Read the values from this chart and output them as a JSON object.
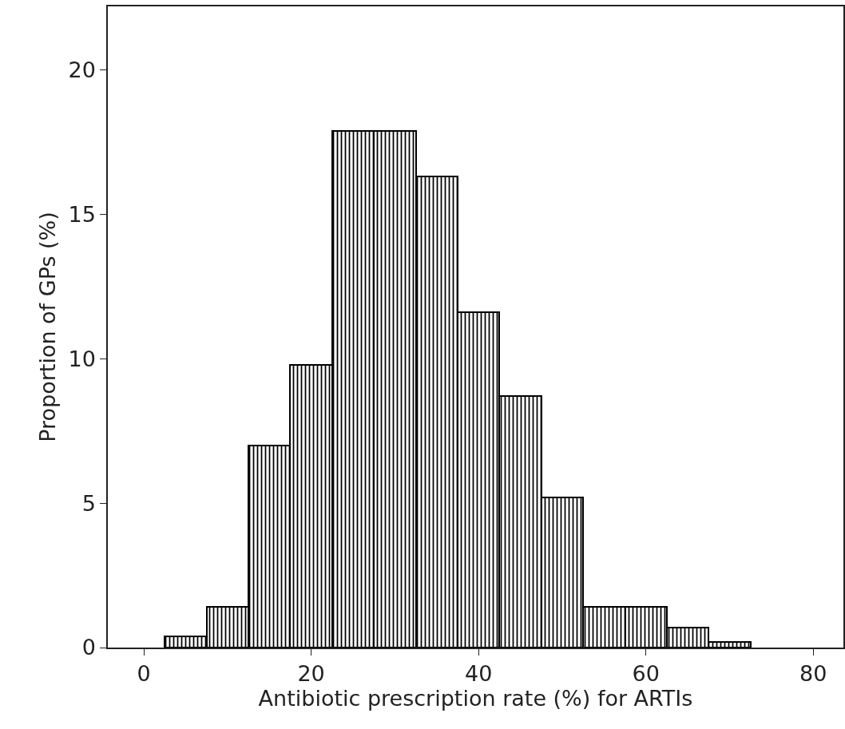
{
  "chart_data": {
    "type": "histogram",
    "xlabel": "Antibiotic prescription rate (%) for ARTIs",
    "ylabel": "Proportion of GPs (%)",
    "bins": [
      2.5,
      7.5,
      12.5,
      17.5,
      22.5,
      27.5,
      32.5,
      37.5,
      42.5,
      47.5,
      52.5,
      57.5,
      62.5,
      67.5,
      72.5
    ],
    "values": [
      0.4,
      1.4,
      7.0,
      9.8,
      17.9,
      17.9,
      16.3,
      11.6,
      8.7,
      5.2,
      1.4,
      1.4,
      0.7,
      0.2
    ],
    "color": "#000000",
    "xlim": [
      -4.3,
      83.6
    ],
    "xticks": [
      0,
      20,
      40,
      60,
      80
    ],
    "ylim": [
      0,
      22.2
    ],
    "yticks": [
      0,
      5,
      10,
      15,
      20
    ],
    "grid": false
  }
}
